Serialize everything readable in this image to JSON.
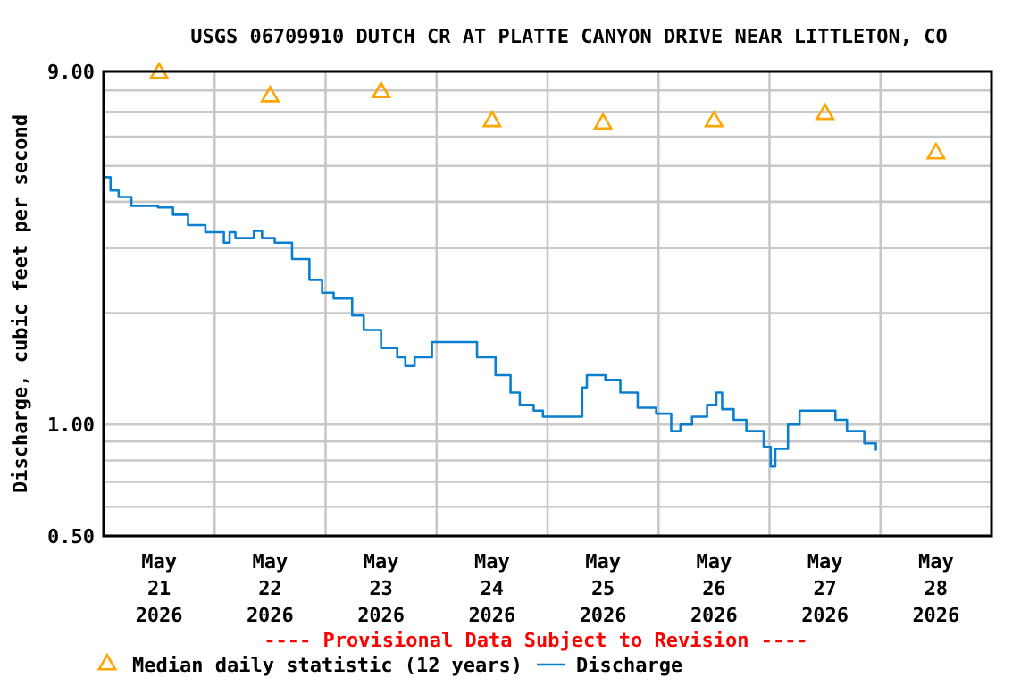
{
  "chart_data": {
    "type": "step",
    "title": "USGS 06709910 DUTCH CR AT PLATTE CANYON DRIVE NEAR LITTLETON, CO",
    "ylabel": "Discharge, cubic feet per second",
    "log": true,
    "grid": true,
    "legend": "bottom",
    "annotations": [
      "---- Provisional Data Subject to Revision ----"
    ],
    "xlim": [
      "2026-05-21T00:00",
      "2026-05-29T00:00"
    ],
    "xticks": [
      {
        "value": "2026-05-21T12:00",
        "label": "May 21 2026"
      },
      {
        "value": "2026-05-22T12:00",
        "label": "May 22 2026"
      },
      {
        "value": "2026-05-23T12:00",
        "label": "May 23 2026"
      },
      {
        "value": "2026-05-24T12:00",
        "label": "May 24 2026"
      },
      {
        "value": "2026-05-25T12:00",
        "label": "May 25 2026"
      },
      {
        "value": "2026-05-26T12:00",
        "label": "May 26 2026"
      },
      {
        "value": "2026-05-27T12:00",
        "label": "May 27 2026"
      },
      {
        "value": "2026-05-28T12:00",
        "label": "May 28 2026"
      },
      {
        "value": "2026-05-22T00:00",
        "label": null
      },
      {
        "value": "2026-05-23T00:00",
        "label": null
      },
      {
        "value": "2026-05-24T00:00",
        "label": null
      },
      {
        "value": "2026-05-25T00:00",
        "label": null
      },
      {
        "value": "2026-05-26T00:00",
        "label": null
      },
      {
        "value": "2026-05-27T00:00",
        "label": null
      },
      {
        "value": "2026-05-28T00:00",
        "label": null
      }
    ],
    "ylim": [
      0.5,
      9
    ],
    "yticks": [
      {
        "value": 0.5,
        "label": "0.50"
      },
      {
        "value": 1,
        "label": "1.00"
      },
      {
        "value": 9,
        "label": "9.00"
      },
      {
        "value": 0.6,
        "label": null
      },
      {
        "value": 0.7,
        "label": null
      },
      {
        "value": 0.8,
        "label": null
      },
      {
        "value": 0.9,
        "label": null
      },
      {
        "value": 2,
        "label": null
      },
      {
        "value": 3,
        "label": null
      },
      {
        "value": 4,
        "label": null
      },
      {
        "value": 5,
        "label": null
      },
      {
        "value": 6,
        "label": null
      },
      {
        "value": 7,
        "label": null
      },
      {
        "value": 8,
        "label": null
      }
    ],
    "series": [
      {
        "name": "Median daily statistic (12 years)",
        "type": "scatter",
        "marker": "triangle",
        "color": "#ffa500",
        "x": [
          "2026-05-21T12:00",
          "2026-05-22T12:00",
          "2026-05-23T12:00",
          "2026-05-24T12:00",
          "2026-05-25T12:00",
          "2026-05-26T12:00",
          "2026-05-27T12:00",
          "2026-05-28T12:00"
        ],
        "values": [
          8.9,
          7.7,
          7.9,
          6.6,
          6.5,
          6.6,
          6.9,
          5.4
        ]
      },
      {
        "name": "Discharge",
        "color": "#0a7fd0",
        "x": [
          "2026-05-21T00:00",
          "2026-05-21T01:30",
          "2026-05-21T03:15",
          "2026-05-21T06:00",
          "2026-05-21T11:45",
          "2026-05-21T15:00",
          "2026-05-21T18:15",
          "2026-05-21T22:00",
          "2026-05-22T02:00",
          "2026-05-22T03:15",
          "2026-05-22T04:30",
          "2026-05-22T08:30",
          "2026-05-22T10:15",
          "2026-05-22T13:00",
          "2026-05-22T16:45",
          "2026-05-22T20:30",
          "2026-05-22T23:15",
          "2026-05-23T01:45",
          "2026-05-23T05:45",
          "2026-05-23T08:15",
          "2026-05-23T12:00",
          "2026-05-23T15:30",
          "2026-05-23T17:15",
          "2026-05-23T19:15",
          "2026-05-23T23:00",
          "2026-05-24T06:15",
          "2026-05-24T08:45",
          "2026-05-24T12:45",
          "2026-05-24T16:00",
          "2026-05-24T18:00",
          "2026-05-24T21:00",
          "2026-05-24T23:00",
          "2026-05-25T06:00",
          "2026-05-25T07:30",
          "2026-05-25T08:30",
          "2026-05-25T12:30",
          "2026-05-25T15:45",
          "2026-05-25T19:30",
          "2026-05-25T23:30",
          "2026-05-26T02:45",
          "2026-05-26T04:45",
          "2026-05-26T07:15",
          "2026-05-26T10:30",
          "2026-05-26T12:30",
          "2026-05-26T13:45",
          "2026-05-26T16:15",
          "2026-05-26T19:00",
          "2026-05-26T22:45",
          "2026-05-27T00:15",
          "2026-05-27T01:15",
          "2026-05-27T04:00",
          "2026-05-27T06:30",
          "2026-05-27T11:30",
          "2026-05-27T14:15",
          "2026-05-27T16:45",
          "2026-05-27T20:30",
          "2026-05-27T23:00"
        ],
        "values": [
          4.66,
          4.29,
          4.12,
          3.9,
          3.86,
          3.69,
          3.46,
          3.31,
          3.1,
          3.31,
          3.19,
          3.34,
          3.19,
          3.1,
          2.8,
          2.46,
          2.27,
          2.19,
          1.97,
          1.8,
          1.61,
          1.52,
          1.44,
          1.52,
          1.67,
          1.67,
          1.52,
          1.36,
          1.22,
          1.13,
          1.09,
          1.05,
          1.05,
          1.26,
          1.36,
          1.32,
          1.22,
          1.11,
          1.07,
          0.96,
          1.0,
          1.05,
          1.13,
          1.22,
          1.1,
          1.03,
          0.96,
          0.87,
          0.77,
          0.86,
          1.0,
          1.09,
          1.09,
          1.03,
          0.96,
          0.89,
          0.85
        ]
      }
    ]
  }
}
